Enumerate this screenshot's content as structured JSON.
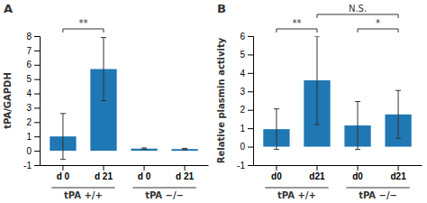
{
  "chart_data": [
    {
      "type": "bar",
      "title": "A",
      "ylabel": "tPA/GAPDH",
      "categories": [
        "d 0",
        "d 21",
        "d 0",
        "d 21"
      ],
      "values": [
        1.0,
        5.7,
        0.15,
        0.12
      ],
      "errors": [
        1.6,
        2.2,
        0.05,
        0.05
      ],
      "ylim": [
        -1,
        8
      ],
      "yticks": [
        -1,
        0,
        1,
        2,
        3,
        4,
        5,
        6,
        7,
        8
      ],
      "annotations": [
        {
          "kind": "bracket",
          "text": "**",
          "between": [
            0,
            1
          ]
        },
        {
          "kind": "group",
          "text": "tPA +/+",
          "between": [
            0,
            1
          ]
        },
        {
          "kind": "group",
          "text": "tPA −/−",
          "between": [
            2,
            3
          ]
        }
      ]
    },
    {
      "type": "bar",
      "title": "B",
      "ylabel": "Relative plasmin activity",
      "categories": [
        "d0",
        "d21",
        "d0",
        "d21"
      ],
      "values": [
        0.95,
        3.6,
        1.15,
        1.75
      ],
      "errors": [
        1.1,
        2.4,
        1.3,
        1.3
      ],
      "ylim": [
        -1,
        6
      ],
      "yticks": [
        -1,
        0,
        1,
        2,
        3,
        4,
        5,
        6
      ],
      "annotations": [
        {
          "kind": "bracket",
          "text": "**",
          "between": [
            0,
            1
          ]
        },
        {
          "kind": "bracket",
          "text": "*",
          "between": [
            2,
            3
          ]
        },
        {
          "kind": "bracket",
          "text": "N.S.",
          "between": [
            1,
            3
          ]
        },
        {
          "kind": "group",
          "text": "tPA +/+",
          "between": [
            0,
            1
          ]
        },
        {
          "kind": "group",
          "text": "tPA −/−",
          "between": [
            2,
            3
          ]
        }
      ]
    }
  ]
}
